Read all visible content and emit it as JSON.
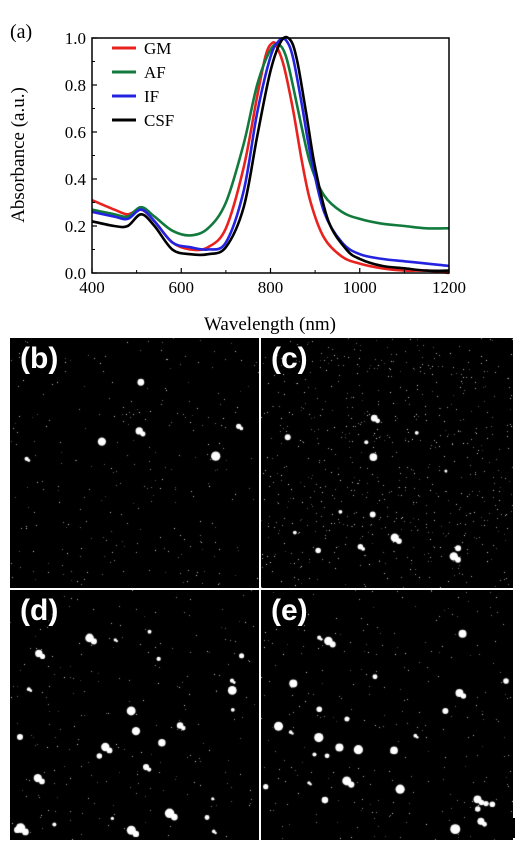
{
  "panels": [
    {
      "label": "(b)"
    },
    {
      "label": "(c)"
    },
    {
      "label": "(d)"
    },
    {
      "label": "(e)"
    }
  ],
  "chart_data": {
    "type": "line",
    "panel_label": "(a)",
    "xlabel": "Wavelength (nm)",
    "ylabel": "Absorbance (a.u.)",
    "xlim": [
      400,
      1200
    ],
    "ylim": [
      0,
      1.0
    ],
    "xticks": [
      "400",
      "600",
      "800",
      "1000",
      "1200"
    ],
    "yticks": [
      "0.0",
      "0.2",
      "0.4",
      "0.6",
      "0.8",
      "1.0"
    ],
    "grid": false,
    "legend_position": "top-left",
    "series": [
      {
        "name": "GM",
        "color": "#e8231f",
        "x": [
          400,
          450,
          480,
          510,
          540,
          580,
          620,
          660,
          700,
          740,
          770,
          790,
          805,
          815,
          830,
          850,
          870,
          890,
          920,
          960,
          1000,
          1050,
          1100,
          1150,
          1200
        ],
        "y": [
          0.31,
          0.27,
          0.25,
          0.27,
          0.22,
          0.13,
          0.1,
          0.11,
          0.19,
          0.45,
          0.75,
          0.93,
          0.98,
          0.96,
          0.88,
          0.7,
          0.48,
          0.3,
          0.15,
          0.07,
          0.04,
          0.02,
          0.01,
          0.01,
          0.0
        ]
      },
      {
        "name": "AF",
        "color": "#117a3c",
        "x": [
          400,
          450,
          480,
          510,
          540,
          580,
          620,
          660,
          700,
          740,
          770,
          800,
          820,
          835,
          850,
          870,
          890,
          920,
          960,
          1000,
          1050,
          1100,
          1150,
          1200
        ],
        "y": [
          0.27,
          0.25,
          0.24,
          0.28,
          0.24,
          0.18,
          0.16,
          0.19,
          0.3,
          0.55,
          0.8,
          0.95,
          0.97,
          0.92,
          0.8,
          0.62,
          0.46,
          0.33,
          0.26,
          0.23,
          0.21,
          0.2,
          0.19,
          0.19
        ]
      },
      {
        "name": "IF",
        "color": "#2323e0",
        "x": [
          400,
          450,
          480,
          510,
          540,
          580,
          620,
          660,
          700,
          740,
          770,
          800,
          820,
          835,
          850,
          870,
          890,
          920,
          960,
          1000,
          1050,
          1100,
          1150,
          1200
        ],
        "y": [
          0.26,
          0.24,
          0.23,
          0.27,
          0.22,
          0.13,
          0.11,
          0.1,
          0.13,
          0.35,
          0.68,
          0.92,
          0.99,
          0.99,
          0.92,
          0.72,
          0.5,
          0.26,
          0.13,
          0.08,
          0.06,
          0.05,
          0.04,
          0.03
        ]
      },
      {
        "name": "CSF",
        "color": "#000000",
        "x": [
          400,
          450,
          480,
          510,
          540,
          580,
          620,
          660,
          700,
          740,
          770,
          800,
          825,
          845,
          860,
          880,
          900,
          930,
          970,
          1000,
          1050,
          1100,
          1150,
          1200
        ],
        "y": [
          0.22,
          0.2,
          0.2,
          0.25,
          0.2,
          0.1,
          0.08,
          0.08,
          0.11,
          0.28,
          0.58,
          0.86,
          0.99,
          0.99,
          0.9,
          0.68,
          0.45,
          0.22,
          0.1,
          0.06,
          0.03,
          0.02,
          0.01,
          0.01
        ]
      }
    ]
  }
}
